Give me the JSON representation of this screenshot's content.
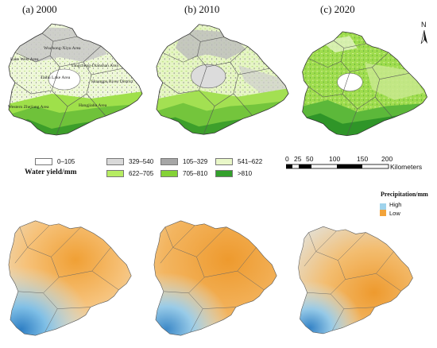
{
  "panels": [
    {
      "title": "(a) 2000"
    },
    {
      "title": "(b) 2010"
    },
    {
      "title": "(c) 2020"
    }
  ],
  "region_labels": [
    "Wuchong-Xiyu Area",
    "Lake West Area",
    "Yangcheng-Dianshan Area",
    "Taihu Lake Area",
    "Huangpu River District",
    "Western Zhejiang Area",
    "Hangjiahu Area"
  ],
  "water_yield_legend": {
    "title": "Water yield/mm",
    "classes": [
      {
        "label": "0–105",
        "color": "#ffffff"
      },
      {
        "label": "329–540",
        "color": "#d9d9d9"
      },
      {
        "label": "105–329",
        "color": "#a6a6a6"
      },
      {
        "label": "541–622",
        "color": "#e9f7c8"
      },
      {
        "label": "622–705",
        "color": "#b6ec62"
      },
      {
        "label": "705–810",
        "color": "#84d236"
      },
      {
        "label": ">810",
        "color": "#33a02c"
      }
    ]
  },
  "scale_bar": {
    "ticks": [
      "0",
      "25",
      "50",
      "100",
      "150",
      "200"
    ],
    "unit": "Kilometers"
  },
  "north_arrow": {
    "label": "N",
    "icon": "north-arrow-icon"
  },
  "precip_legend": {
    "title": "Precipitation/mm",
    "high": "High",
    "low": "Low",
    "high_color": "#9fd3ec",
    "low_color": "#f2a33a"
  }
}
